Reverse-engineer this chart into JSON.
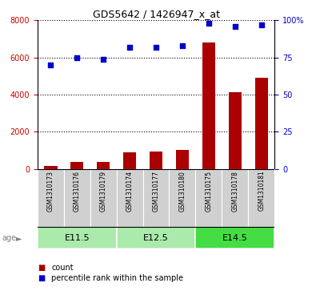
{
  "title": "GDS5642 / 1426947_x_at",
  "samples": [
    "GSM1310173",
    "GSM1310176",
    "GSM1310179",
    "GSM1310174",
    "GSM1310177",
    "GSM1310180",
    "GSM1310175",
    "GSM1310178",
    "GSM1310181"
  ],
  "counts": [
    150,
    380,
    370,
    900,
    950,
    1000,
    6800,
    4150,
    4900
  ],
  "percentiles": [
    70,
    75,
    74,
    82,
    82,
    83,
    98,
    96,
    97
  ],
  "ylim_left": [
    0,
    8000
  ],
  "ylim_right": [
    0,
    100
  ],
  "yticks_left": [
    0,
    2000,
    4000,
    6000,
    8000
  ],
  "ytick_labels_left": [
    "0",
    "2000",
    "4000",
    "6000",
    "8000"
  ],
  "yticks_right": [
    0,
    25,
    50,
    75,
    100
  ],
  "ytick_labels_right": [
    "0",
    "25",
    "50",
    "75",
    "100%"
  ],
  "groups": [
    {
      "label": "E11.5",
      "start": 0,
      "end": 3,
      "color": "#AAEAAA"
    },
    {
      "label": "E12.5",
      "start": 3,
      "end": 6,
      "color": "#AAEAAA"
    },
    {
      "label": "E14.5",
      "start": 6,
      "end": 9,
      "color": "#44DD44"
    }
  ],
  "bar_color": "#AA0000",
  "dot_color": "#0000CC",
  "bar_width": 0.5,
  "age_label": "age",
  "legend_count_label": "count",
  "legend_pct_label": "percentile rank within the sample",
  "left_tick_color": "#CC0000",
  "right_tick_color": "#0000CC",
  "grid_color": "black",
  "grid_linewidth": 0.8,
  "sample_box_color": "#D0D0D0",
  "spine_color": "black"
}
